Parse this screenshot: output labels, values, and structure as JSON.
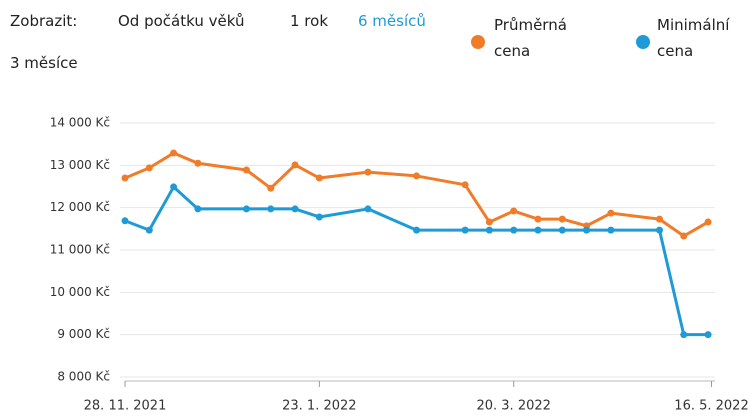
{
  "controls": {
    "label": "Zobrazit:",
    "options": [
      "Od počátku věků",
      "1 rok",
      "6 měsíců",
      "3 měsíce"
    ]
  },
  "chart_data": {
    "type": "line",
    "x": [
      "2021-11-28",
      "2021-12-05",
      "2021-12-12",
      "2021-12-19",
      "2022-01-02",
      "2022-01-09",
      "2022-01-16",
      "2022-01-23",
      "2022-02-06",
      "2022-02-20",
      "2022-03-06",
      "2022-03-13",
      "2022-03-20",
      "2022-03-27",
      "2022-04-03",
      "2022-04-10",
      "2022-04-17",
      "2022-05-01",
      "2022-05-08",
      "2022-05-15"
    ],
    "series": [
      {
        "name": "Průměrná cena",
        "color": "#f07c2a",
        "values": [
          12700,
          12940,
          13290,
          13050,
          12890,
          12460,
          13010,
          12700,
          12840,
          12750,
          12540,
          11660,
          11920,
          11730,
          11730,
          11570,
          11870,
          11730,
          11330,
          11660
        ]
      },
      {
        "name": "Minimální cena",
        "color": "#1e9bd7",
        "values": [
          11690,
          11470,
          12490,
          11970,
          11970,
          11970,
          11970,
          11780,
          11970,
          11470,
          11470,
          11470,
          11470,
          11470,
          11470,
          11470,
          11470,
          11470,
          9000,
          9000
        ]
      }
    ],
    "xlim": [
      "2021-11-28",
      "2022-05-17"
    ],
    "xticks": [
      {
        "value": "2021-11-28",
        "label": "28. 11. 2021"
      },
      {
        "value": "2022-01-23",
        "label": "23. 1. 2022"
      },
      {
        "value": "2022-03-20",
        "label": "20. 3. 2022"
      },
      {
        "value": "2022-05-16",
        "label": "16. 5. 2022"
      }
    ],
    "ylim": [
      8000,
      14000
    ],
    "yticks": [
      {
        "value": 8000,
        "label": "8 000 Kč"
      },
      {
        "value": 9000,
        "label": "9 000 Kč"
      },
      {
        "value": 10000,
        "label": "10 000 Kč"
      },
      {
        "value": 11000,
        "label": "11 000 Kč"
      },
      {
        "value": 12000,
        "label": "12 000 Kč"
      },
      {
        "value": 13000,
        "label": "13 000 Kč"
      },
      {
        "value": 14000,
        "label": "14 000 Kč"
      }
    ],
    "grid": true
  }
}
